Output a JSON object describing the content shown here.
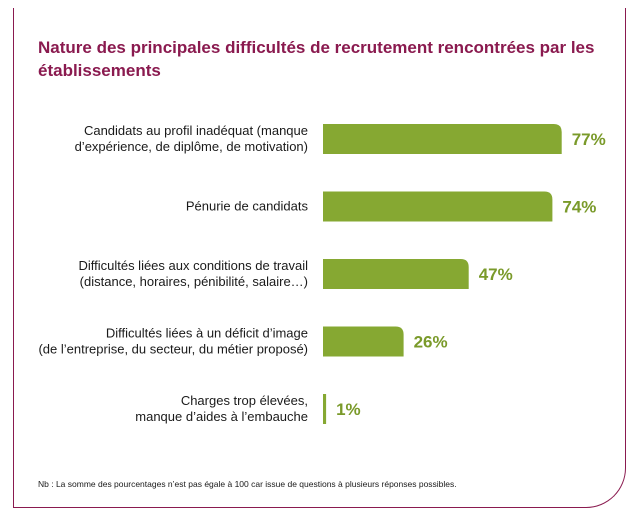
{
  "colors": {
    "bar": "#86a832",
    "value_text": "#7a9a2a",
    "title": "#8a1a4f",
    "frame": "#8a1a4f"
  },
  "chart_data": {
    "type": "bar",
    "orientation": "horizontal",
    "title": "Nature des principales difficultés de recrutement rencontrées par les établissements",
    "categories": [
      [
        "Candidats au profil inadéquat (manque",
        "d’expérience, de diplôme, de motivation)"
      ],
      [
        "Pénurie de candidats"
      ],
      [
        "Difficultés liées aux conditions de travail",
        "(distance, horaires, pénibilité, salaire…)"
      ],
      [
        "Difficultés liées à un déficit d’image",
        "(de l’entreprise, du secteur, du métier proposé)"
      ],
      [
        "Charges trop élevées,",
        "manque d’aides à l’embauche"
      ]
    ],
    "values": [
      77,
      74,
      47,
      26,
      1
    ],
    "value_labels": [
      "77%",
      "74%",
      "47%",
      "26%",
      "1%"
    ],
    "unit": "%",
    "xlim": [
      0,
      100
    ],
    "grid": false
  },
  "footnote": "Nb : La somme des pourcentages n’est pas égale à 100 car issue de questions à plusieurs réponses possibles."
}
